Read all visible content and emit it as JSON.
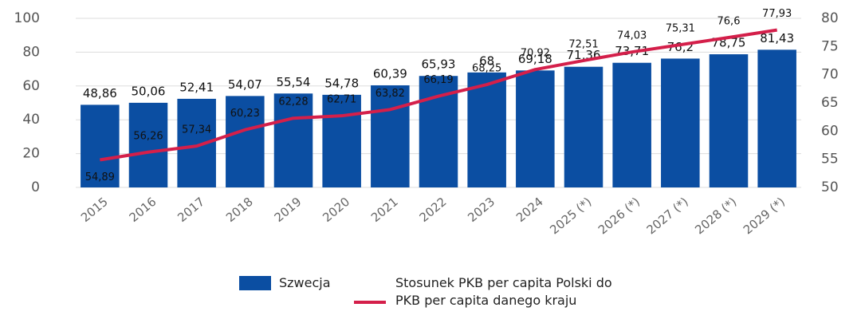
{
  "chart_data": {
    "type": "bar-line",
    "categories": [
      "2015",
      "2016",
      "2017",
      "2018",
      "2019",
      "2020",
      "2021",
      "2022",
      "2023",
      "2024",
      "2025 (*)",
      "2026 (*)",
      "2027 (*)",
      "2028 (*)",
      "2029 (*)"
    ],
    "series": [
      {
        "name": "Szwecja",
        "type": "bar",
        "color": "#0b4ea2",
        "values": [
          48.86,
          50.06,
          52.41,
          54.07,
          55.54,
          54.78,
          60.39,
          65.93,
          68,
          69.18,
          71.36,
          73.71,
          76.2,
          78.75,
          81.43
        ],
        "value_labels": [
          "48,86",
          "50,06",
          "52,41",
          "54,07",
          "55,54",
          "54,78",
          "60,39",
          "65,93",
          "68",
          "69,18",
          "71,36",
          "73,71",
          "76,2",
          "78,75",
          "81,43"
        ]
      },
      {
        "name": "Stosunek PKB per capita Polski do PKB per capita danego kraju",
        "type": "line",
        "axis": "y2",
        "color": "#d41f4a",
        "values": [
          54.89,
          56.26,
          57.34,
          60.23,
          62.28,
          62.71,
          63.82,
          66.19,
          68.25,
          70.92,
          72.51,
          74.03,
          75.31,
          76.6,
          77.93
        ],
        "value_labels": [
          "54,89",
          "56,26",
          "57,34",
          "60,23",
          "62,28",
          "62,71",
          "63,82",
          "66,19",
          "68,25",
          "70,92",
          "72,51",
          "74,03",
          "75,31",
          "76,6",
          "77,93"
        ]
      }
    ],
    "ylim": [
      0,
      100
    ],
    "yticks": [
      0,
      20,
      40,
      60,
      80,
      100
    ],
    "y2lim": [
      50,
      80
    ],
    "y2ticks": [
      50,
      55,
      60,
      65,
      70,
      75,
      80
    ],
    "grid": true,
    "legend": "bottom"
  }
}
